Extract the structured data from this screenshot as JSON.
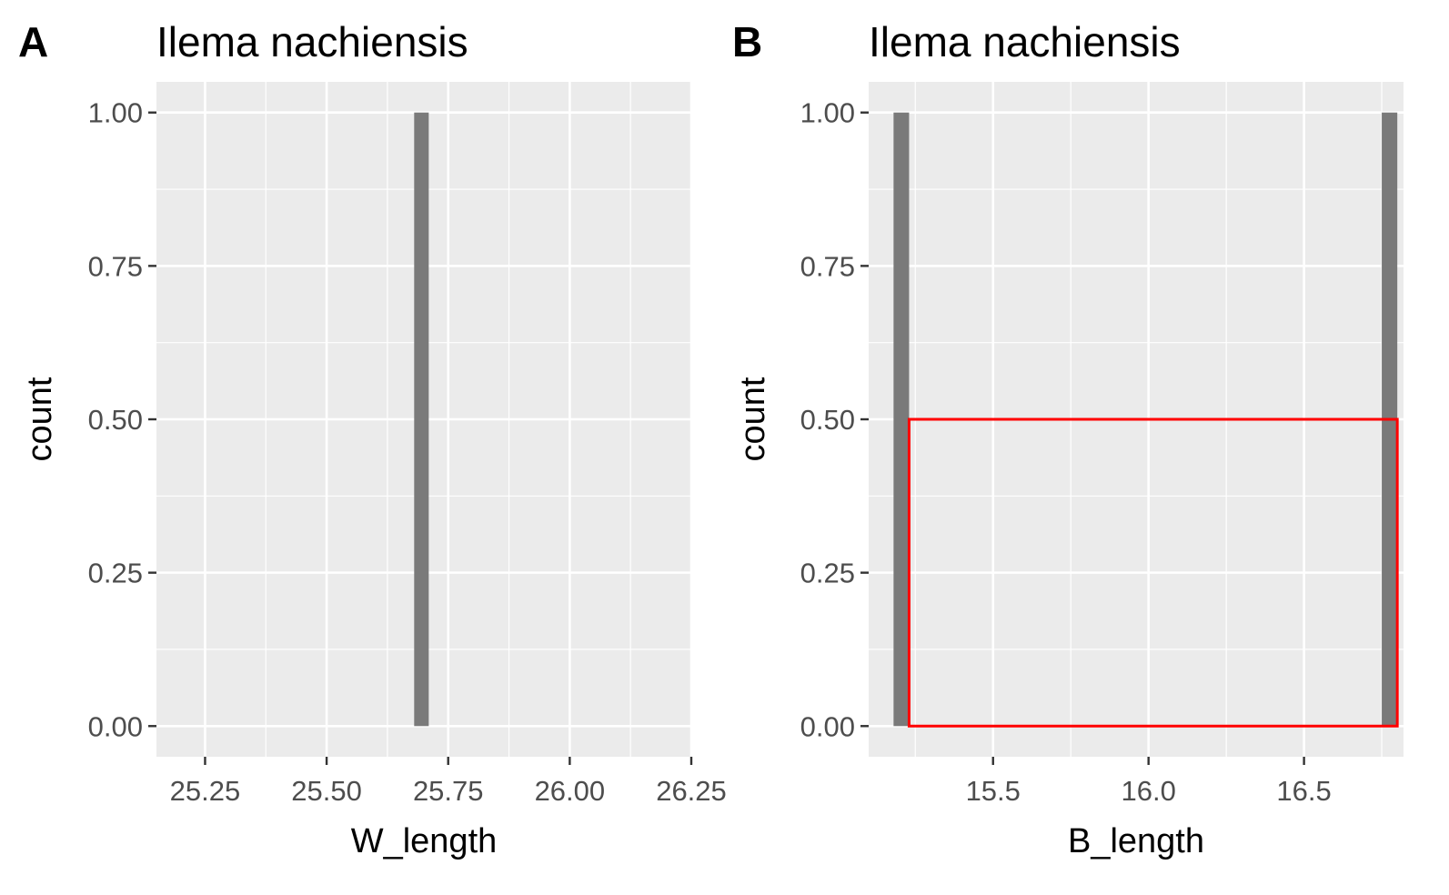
{
  "chart_data": [
    {
      "panel": "A",
      "type": "bar",
      "title": "Ilema nachiensis",
      "xlabel": "W_length",
      "ylabel": "count",
      "xlim": [
        25.15,
        26.25
      ],
      "ylim": [
        -0.05,
        1.05
      ],
      "x_ticks": [
        25.25,
        25.5,
        25.75,
        26.0,
        26.25
      ],
      "x_tick_labels": [
        "25.25",
        "25.50",
        "25.75",
        "26.00",
        "26.25"
      ],
      "y_ticks": [
        0,
        0.25,
        0.5,
        0.75,
        1.0
      ],
      "y_tick_labels": [
        "0.00",
        "0.25",
        "0.50",
        "0.75",
        "1.00"
      ],
      "bars": [
        {
          "x_start": 25.68,
          "x_end": 25.71,
          "count": 1
        }
      ],
      "overlay": {
        "x_start": 25.7,
        "x_end": 25.7,
        "height": 1
      },
      "panel_background": "#ebebeb",
      "bar_color": "#7a7a7a",
      "overlay_color": "#ff0000",
      "grid": true
    },
    {
      "panel": "B",
      "type": "bar",
      "title": "Ilema nachiensis",
      "xlabel": "B_length",
      "ylabel": "count",
      "xlim": [
        15.1,
        16.82
      ],
      "ylim": [
        -0.05,
        1.05
      ],
      "x_ticks": [
        15.5,
        16.0,
        16.5
      ],
      "x_tick_labels": [
        "15.5",
        "16.0",
        "16.5"
      ],
      "y_ticks": [
        0,
        0.25,
        0.5,
        0.75,
        1.0
      ],
      "y_tick_labels": [
        "0.00",
        "0.25",
        "0.50",
        "0.75",
        "1.00"
      ],
      "bars": [
        {
          "x_start": 15.18,
          "x_end": 15.23,
          "count": 1
        },
        {
          "x_start": 16.75,
          "x_end": 16.8,
          "count": 1
        }
      ],
      "overlay": {
        "x_start": 15.23,
        "x_end": 16.8,
        "height": 0.5
      },
      "panel_background": "#ebebeb",
      "bar_color": "#7a7a7a",
      "overlay_color": "#ff0000",
      "grid": true
    }
  ]
}
